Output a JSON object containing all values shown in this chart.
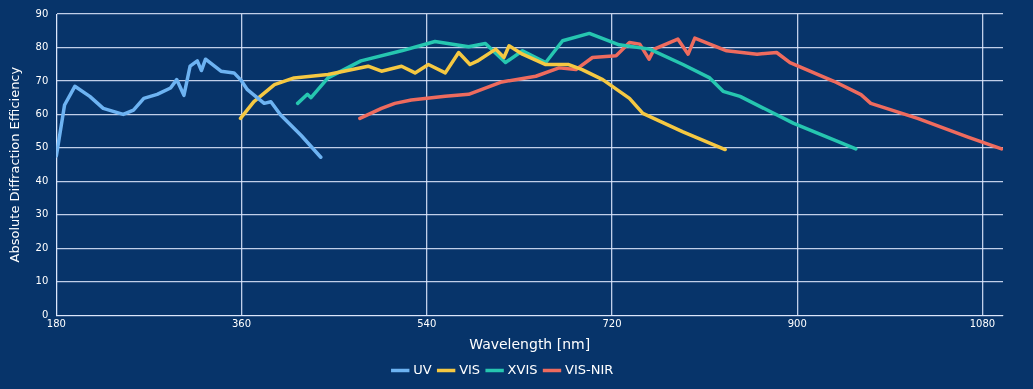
{
  "chart_data": {
    "type": "line",
    "xlabel": "Wavelength [nm]",
    "ylabel": "Absolute Diffraction Efficiency",
    "xlim": [
      180,
      1100
    ],
    "xticks": [
      180,
      360,
      540,
      720,
      900,
      1080
    ],
    "ylim": [
      0,
      90
    ],
    "yticks": [
      0,
      10,
      20,
      30,
      40,
      50,
      60,
      70,
      80,
      90
    ],
    "grid": true,
    "legend": "bottom",
    "marker": "none",
    "line_style": "solid",
    "series": [
      {
        "name": "UV",
        "color": "#6db3f2",
        "x": [
          180,
          188,
          198,
          212.5,
          225.6,
          245,
          255,
          265,
          278,
          291,
          297,
          304,
          310,
          317,
          321,
          325,
          340,
          352.7,
          359,
          365.7,
          382,
          388.5,
          398,
          418,
          437
        ],
        "values": [
          47.6,
          62.8,
          68.4,
          65.4,
          61.8,
          60,
          61.3,
          64.8,
          66,
          67.9,
          70.4,
          65.7,
          74.4,
          76,
          73.1,
          76.5,
          72.9,
          72.4,
          70.4,
          67.4,
          63.3,
          63.8,
          59.8,
          53.7,
          47.2
        ]
      },
      {
        "name": "VIS",
        "color": "#f5c842",
        "x": [
          359,
          372,
          392,
          411,
          444,
          483,
          496,
          515.5,
          528.6,
          541.6,
          558,
          571,
          582,
          589,
          607,
          615,
          620,
          633,
          655.6,
          678,
          691,
          711,
          737,
          750,
          789,
          830
        ],
        "values": [
          58.8,
          63.8,
          68.9,
          70.9,
          71.9,
          74.4,
          72.9,
          74.4,
          72.4,
          74.9,
          72.4,
          78.5,
          74.9,
          75.9,
          79.5,
          77,
          80.5,
          78,
          74.9,
          74.9,
          73.4,
          70.4,
          64.8,
          60.3,
          54.8,
          49.5
        ]
      },
      {
        "name": "XVIS",
        "color": "#26c6b0",
        "x": [
          414.5,
          424,
          427.5,
          444,
          476,
          515.5,
          548,
          580.7,
          597,
          616.5,
          633,
          655.6,
          672,
          698,
          727,
          756.6,
          789,
          815,
          828,
          844.5,
          896.6,
          957
        ],
        "values": [
          63.3,
          66,
          65,
          70.9,
          76,
          79,
          81.8,
          80.2,
          81.2,
          75.5,
          79,
          75.5,
          82,
          84.2,
          80.8,
          79.5,
          74.9,
          70.9,
          66.9,
          65.4,
          57.3,
          49.7
        ]
      },
      {
        "name": "VIS-NIR",
        "color": "#ee6b5e",
        "x": [
          475,
          496,
          509,
          525,
          558,
          580.7,
          613,
          646,
          668.6,
          685,
          701,
          724,
          737,
          747,
          756,
          761,
          784,
          794,
          800.5,
          815,
          831.5,
          861,
          880,
          893,
          935.7,
          962,
          971.5,
          1017,
          1066,
          1098.6
        ],
        "values": [
          58.8,
          61.8,
          63.3,
          64.3,
          65.4,
          66,
          69.7,
          71.4,
          73.9,
          73.4,
          77,
          77.5,
          81.5,
          81,
          76.5,
          79.5,
          82.5,
          78,
          82.8,
          81,
          79,
          78,
          78.5,
          75.5,
          69.9,
          65.9,
          63.3,
          58.8,
          53.2,
          49.7
        ]
      }
    ]
  }
}
